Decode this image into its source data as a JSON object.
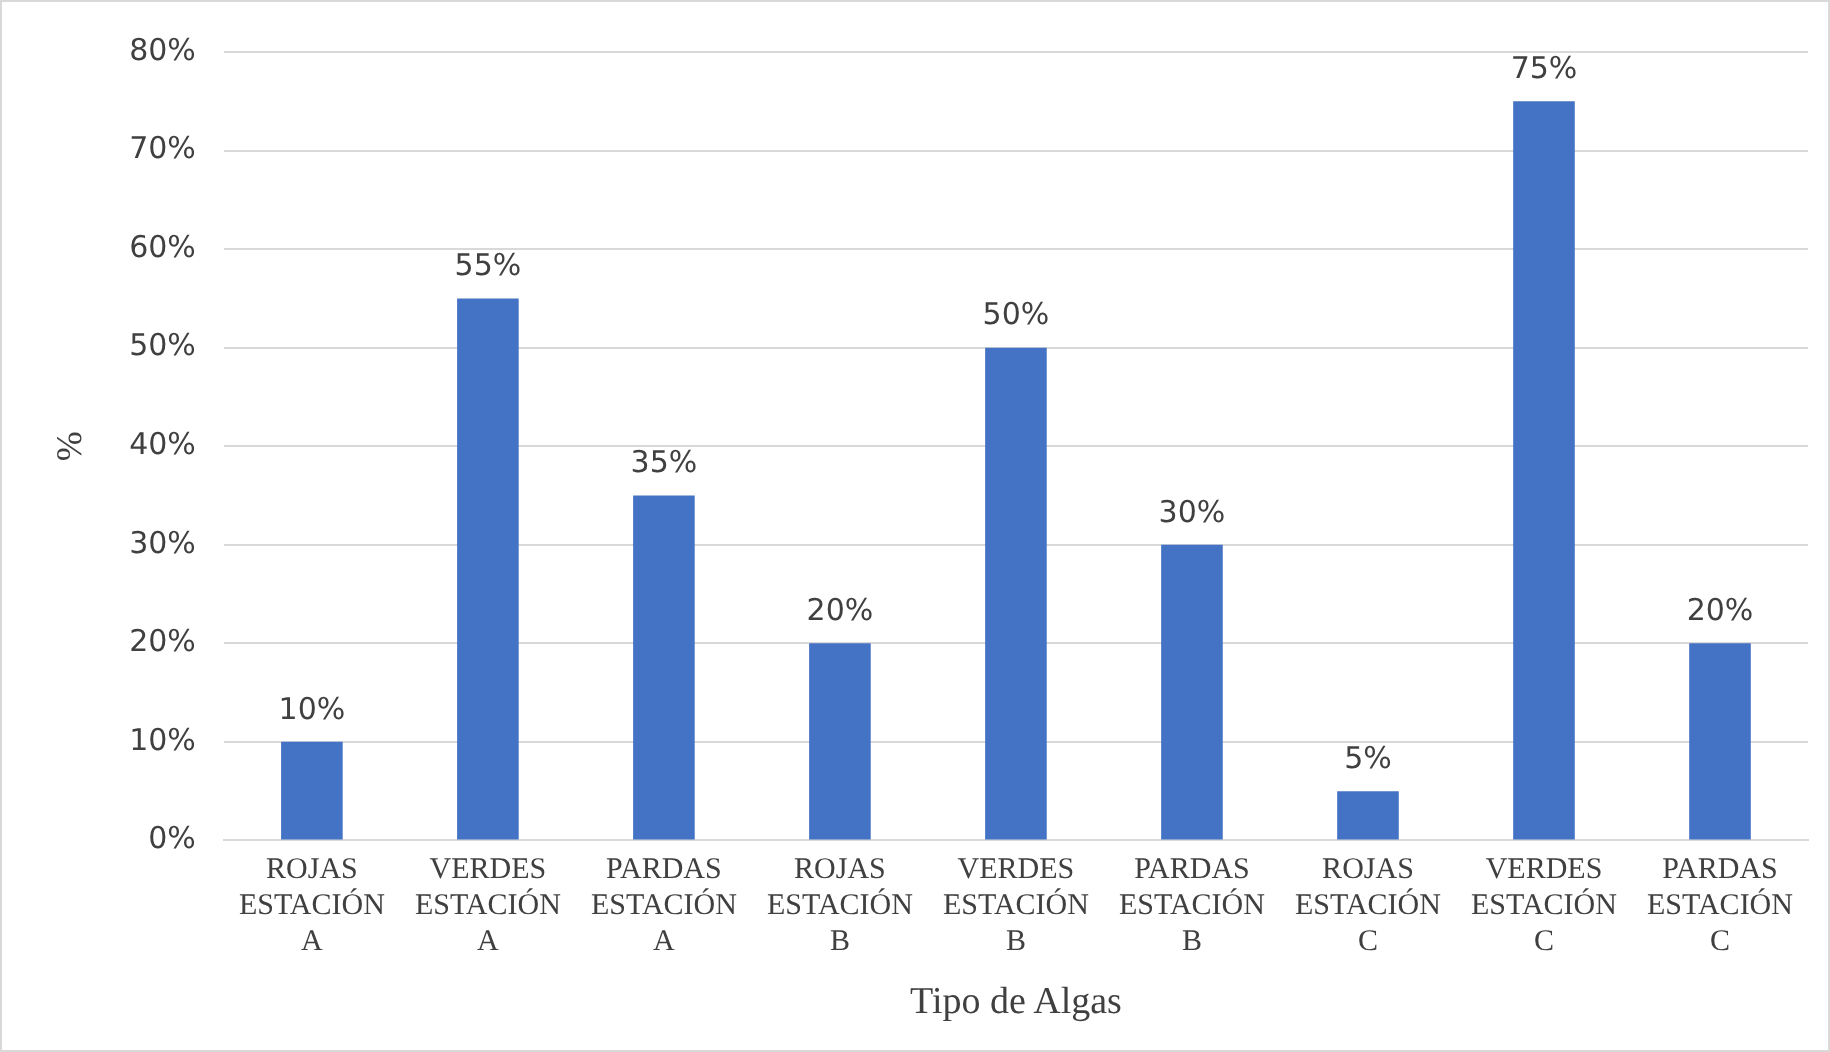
{
  "chart_data": {
    "type": "bar",
    "xlabel": "Tipo de Algas",
    "ylabel": "%",
    "categories": [
      "ROJAS ESTACIÓN A",
      "VERDES ESTACIÓN A",
      "PARDAS ESTACIÓN A",
      "ROJAS ESTACIÓN B",
      "VERDES ESTACIÓN B",
      "PARDAS ESTACIÓN B",
      "ROJAS ESTACIÓN C",
      "VERDES ESTACIÓN C",
      "PARDAS ESTACIÓN C"
    ],
    "values": [
      10,
      55,
      35,
      20,
      50,
      30,
      5,
      75,
      20
    ],
    "value_labels": [
      "10%",
      "55%",
      "35%",
      "20%",
      "50%",
      "30%",
      "5%",
      "75%",
      "20%"
    ],
    "color": "#4472c4",
    "ylim": [
      0,
      80
    ],
    "yticks": [
      {
        "value": 0,
        "label": "0%"
      },
      {
        "value": 10,
        "label": "10%"
      },
      {
        "value": 20,
        "label": "20%"
      },
      {
        "value": 30,
        "label": "30%"
      },
      {
        "value": 40,
        "label": "40%"
      },
      {
        "value": 50,
        "label": "50%"
      },
      {
        "value": 60,
        "label": "60%"
      },
      {
        "value": 70,
        "label": "70%"
      },
      {
        "value": 80,
        "label": "80%"
      }
    ],
    "grid": "y",
    "legend": false
  }
}
